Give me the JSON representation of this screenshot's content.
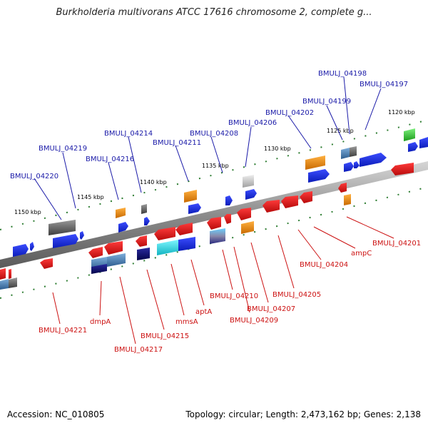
{
  "title": "Burkholderia multivorans ATCC 17616 chromosome 2, complete g...",
  "footer": {
    "accession": "Accession: NC_010805",
    "summary": "Topology: circular; Length: 2,473,162 bp; Genes: 2,138"
  },
  "colors": {
    "top_label": "#1a1aa8",
    "bottom_label": "#cc1111",
    "backbone": "#8c8c8c",
    "tick": "#2e7d32",
    "forward_gene": "#1f2fe0",
    "reverse_gene": "#e01414",
    "orange_gene": "#f08c00",
    "gray_gene": "#707070",
    "cyan_gene": "#22d6e0",
    "steel_gene": "#4a7fb0",
    "navy_gene": "#0a0a70",
    "green_gene": "#2ec02e"
  },
  "ruler_labels": [
    "1150 kbp",
    "1145 kbp",
    "1140 kbp",
    "1135 kbp",
    "1130 kbp",
    "1125 kbp",
    "1120 kbp"
  ],
  "top_genes": [
    "BMULJ_04220",
    "BMULJ_04219",
    "BMULJ_04216",
    "BMULJ_04214",
    "BMULJ_04211",
    "BMULJ_04208",
    "BMULJ_04206",
    "BMULJ_04202",
    "BMULJ_04199",
    "BMULJ_04198",
    "BMULJ_04197"
  ],
  "bottom_genes": [
    "BMULJ_04221",
    "dmpA",
    "BMULJ_04217",
    "BMULJ_04215",
    "mmsA",
    "aptA",
    "BMULJ_04210",
    "BMULJ_04209",
    "BMULJ_04207",
    "BMULJ_04205",
    "BMULJ_04204",
    "ampC",
    "BMULJ_04201"
  ]
}
